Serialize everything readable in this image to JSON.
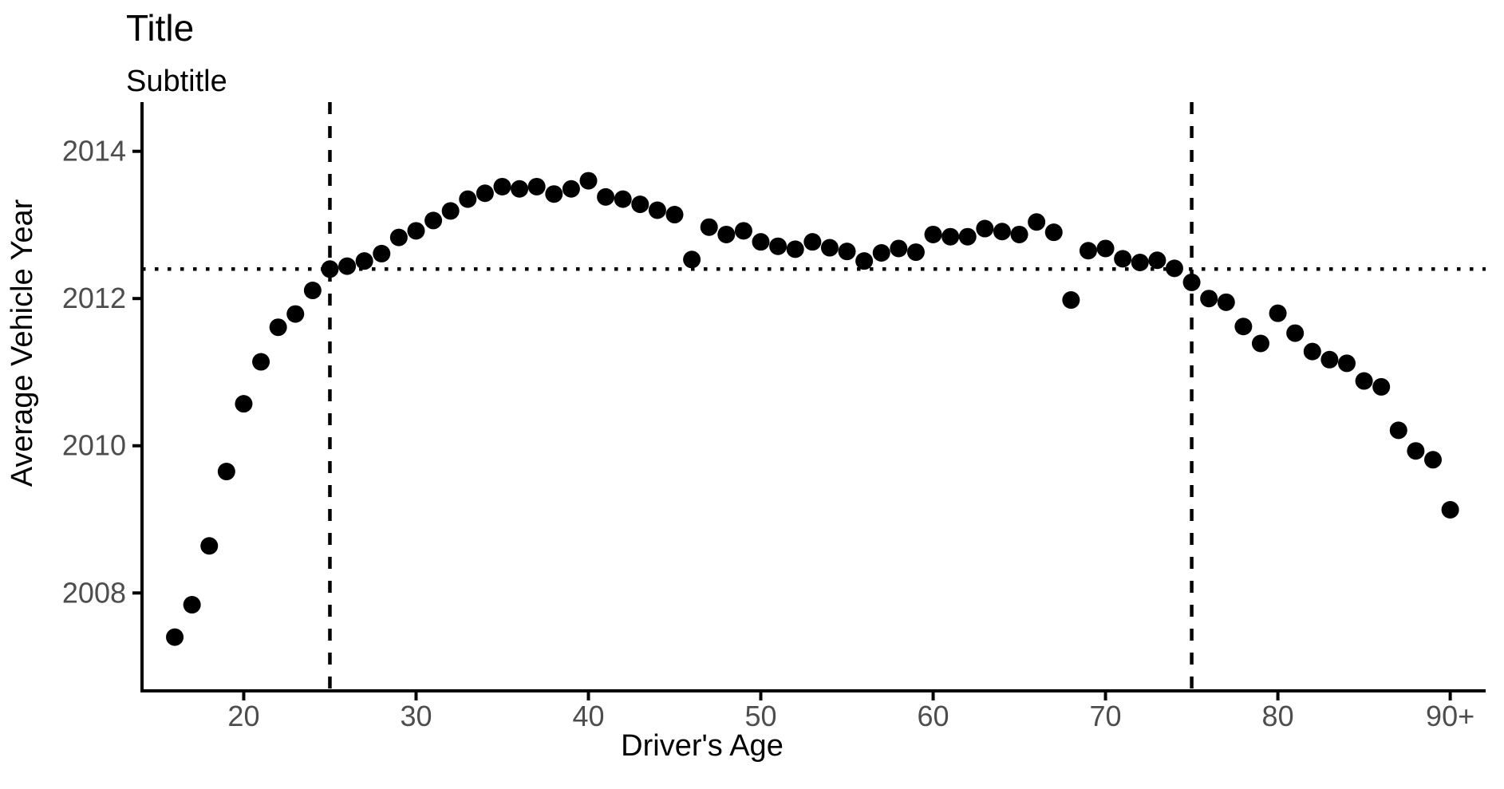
{
  "header": {
    "title": "Title",
    "subtitle": "Subtitle"
  },
  "chart_data": {
    "type": "scatter",
    "title": "Title",
    "subtitle": "Subtitle",
    "xlabel": "Driver's Age",
    "ylabel": "Average Vehicle Year",
    "grid": false,
    "legend": "none",
    "x_domain": [
      14.1,
      91.5
    ],
    "y_domain": [
      2006.67,
      2014.43
    ],
    "x_ticks": [
      {
        "value": 20,
        "label": "20"
      },
      {
        "value": 30,
        "label": "30"
      },
      {
        "value": 40,
        "label": "40"
      },
      {
        "value": 50,
        "label": "50"
      },
      {
        "value": 60,
        "label": "60"
      },
      {
        "value": 70,
        "label": "70"
      },
      {
        "value": 80,
        "label": "80"
      },
      {
        "value": 90,
        "label": "90+"
      }
    ],
    "y_ticks": [
      {
        "value": 2008,
        "label": "2008"
      },
      {
        "value": 2010,
        "label": "2010"
      },
      {
        "value": 2012,
        "label": "2012"
      },
      {
        "value": 2014,
        "label": "2014"
      }
    ],
    "x": [
      16,
      17,
      18,
      19,
      20,
      21,
      22,
      23,
      24,
      25,
      26,
      27,
      28,
      29,
      30,
      31,
      32,
      33,
      34,
      35,
      36,
      37,
      38,
      39,
      40,
      41,
      42,
      43,
      44,
      45,
      46,
      47,
      48,
      49,
      50,
      51,
      52,
      53,
      54,
      55,
      56,
      57,
      58,
      59,
      60,
      61,
      62,
      63,
      64,
      65,
      66,
      67,
      68,
      69,
      70,
      71,
      72,
      73,
      74,
      75,
      76,
      77,
      78,
      79,
      80,
      81,
      82,
      83,
      84,
      85,
      86,
      87,
      88,
      89,
      90
    ],
    "y": [
      2007.4,
      2007.84,
      2008.64,
      2009.65,
      2010.57,
      2011.14,
      2011.61,
      2011.79,
      2012.11,
      2012.4,
      2012.44,
      2012.51,
      2012.61,
      2012.83,
      2012.92,
      2013.06,
      2013.19,
      2013.35,
      2013.43,
      2013.52,
      2013.49,
      2013.52,
      2013.42,
      2013.49,
      2013.6,
      2013.38,
      2013.35,
      2013.28,
      2013.2,
      2013.14,
      2012.53,
      2012.97,
      2012.87,
      2012.92,
      2012.77,
      2012.71,
      2012.67,
      2012.77,
      2012.69,
      2012.64,
      2012.51,
      2012.62,
      2012.68,
      2012.63,
      2012.87,
      2012.84,
      2012.84,
      2012.95,
      2012.91,
      2012.87,
      2013.04,
      2012.9,
      2011.98,
      2012.65,
      2012.68,
      2012.54,
      2012.49,
      2012.52,
      2012.41,
      2012.22,
      2012.0,
      2011.95,
      2011.62,
      2011.39,
      2011.8,
      2011.53,
      2011.28,
      2011.17,
      2011.12,
      2010.88,
      2010.8,
      2010.21,
      2009.93,
      2009.81,
      2009.13
    ],
    "reference_lines": {
      "vertical_dashed_x": [
        25,
        75
      ],
      "horizontal_dotted_y": 2012.4
    },
    "colors": {
      "point": "#000000",
      "axis": "#000000",
      "ref_line": "#000000",
      "tick_label": "#4d4d4d"
    },
    "point_radius_px": 11
  }
}
